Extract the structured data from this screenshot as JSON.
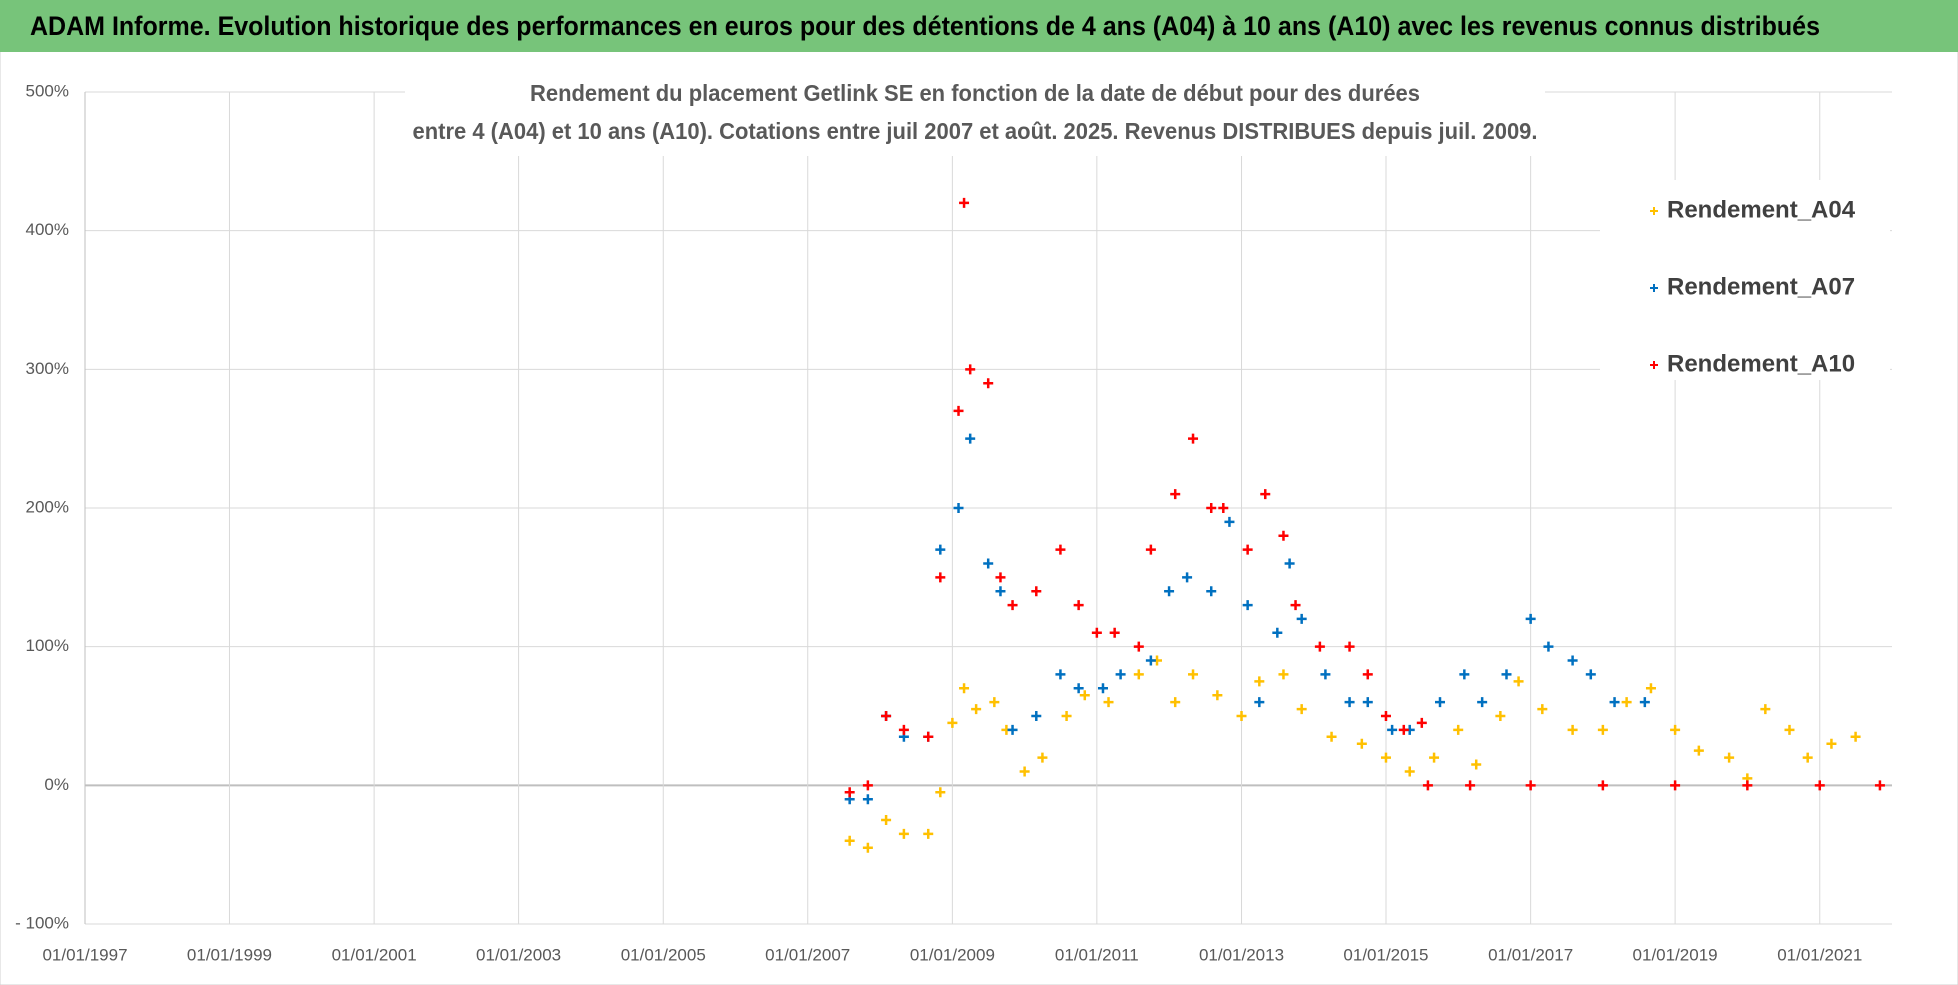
{
  "header": {
    "title": "ADAM Informe. Evolution historique des performances en euros pour des détentions de 4 ans (A04) à 10 ans (A10) avec les revenus connus distribués"
  },
  "chart_data": {
    "type": "scatter",
    "title": [
      "Rendement du placement Getlink SE en fonction de la date de début pour des durées",
      "entre 4 (A04) et 10 ans (A10).  Cotations entre juil 2007 et août. 2025.  Revenus DISTRIBUES depuis juil. 2009."
    ],
    "xlim": [
      "01/01/1997",
      "01/01/2022"
    ],
    "xticks": [
      "01/01/1997",
      "01/01/1999",
      "01/01/2001",
      "01/01/2003",
      "01/01/2005",
      "01/01/2007",
      "01/01/2009",
      "01/01/2011",
      "01/01/2013",
      "01/01/2015",
      "01/01/2017",
      "01/01/2019",
      "01/01/2021"
    ],
    "ylim": [
      -100,
      500
    ],
    "yticks": [
      {
        "value": -100,
        "label": "- 100%"
      },
      {
        "value": 0,
        "label": "0%"
      },
      {
        "value": 100,
        "label": "100%"
      },
      {
        "value": 200,
        "label": "200%"
      },
      {
        "value": 300,
        "label": "300%"
      },
      {
        "value": 400,
        "label": "400%"
      },
      {
        "value": 500,
        "label": "500%"
      }
    ],
    "grid": true,
    "legend": "top-right",
    "series": [
      {
        "name": "Rendement_A04",
        "color": "#ffc000",
        "x": [
          "01/08/2007",
          "01/11/2007",
          "01/02/2008",
          "01/05/2008",
          "01/09/2008",
          "01/11/2008",
          "01/01/2009",
          "01/03/2009",
          "01/05/2009",
          "01/08/2009",
          "01/10/2009",
          "01/01/2010",
          "01/04/2010",
          "01/08/2010",
          "01/11/2010",
          "01/03/2011",
          "01/08/2011",
          "01/11/2011",
          "01/02/2012",
          "01/05/2012",
          "01/09/2012",
          "01/01/2013",
          "01/04/2013",
          "01/08/2013",
          "01/11/2013",
          "01/04/2014",
          "01/09/2014",
          "01/01/2015",
          "01/05/2015",
          "01/09/2015",
          "01/01/2016",
          "01/04/2016",
          "01/08/2016",
          "01/11/2016",
          "01/03/2017",
          "01/08/2017",
          "01/01/2018",
          "01/05/2018",
          "01/09/2018",
          "01/01/2019",
          "01/05/2019",
          "01/10/2019",
          "01/01/2020",
          "01/04/2020",
          "01/08/2020",
          "01/11/2020",
          "01/03/2021",
          "01/07/2021"
        ],
        "values": [
          -40,
          -45,
          -25,
          -35,
          -35,
          -5,
          45,
          70,
          55,
          60,
          40,
          10,
          20,
          50,
          65,
          60,
          80,
          90,
          60,
          80,
          65,
          50,
          75,
          80,
          55,
          35,
          30,
          20,
          10,
          20,
          40,
          15,
          50,
          75,
          55,
          40,
          40,
          60,
          70,
          40,
          25,
          20,
          5,
          55,
          40,
          20,
          30,
          35
        ]
      },
      {
        "name": "Rendement_A07",
        "color": "#0070c0",
        "x": [
          "01/08/2007",
          "01/11/2007",
          "01/02/2008",
          "01/05/2008",
          "01/09/2008",
          "01/11/2008",
          "01/02/2009",
          "01/04/2009",
          "01/07/2009",
          "01/09/2009",
          "01/11/2009",
          "01/03/2010",
          "01/07/2010",
          "01/10/2010",
          "01/02/2011",
          "01/05/2011",
          "01/10/2011",
          "01/01/2012",
          "01/04/2012",
          "01/08/2012",
          "01/11/2012",
          "01/02/2013",
          "01/04/2013",
          "01/07/2013",
          "01/09/2013",
          "01/11/2013",
          "01/03/2014",
          "01/07/2014",
          "01/10/2014",
          "01/02/2015",
          "01/05/2015",
          "01/10/2015",
          "01/02/2016",
          "01/05/2016",
          "01/09/2016",
          "01/01/2017",
          "01/04/2017",
          "01/08/2017",
          "01/11/2017",
          "01/03/2018",
          "01/08/2018"
        ],
        "values": [
          -10,
          -10,
          50,
          35,
          35,
          170,
          200,
          250,
          160,
          140,
          40,
          50,
          80,
          70,
          70,
          80,
          90,
          140,
          150,
          140,
          190,
          130,
          60,
          110,
          160,
          120,
          80,
          60,
          60,
          40,
          40,
          60,
          80,
          60,
          80,
          120,
          100,
          90,
          80,
          60,
          60
        ]
      },
      {
        "name": "Rendement_A10",
        "color": "#ff0000",
        "x": [
          "01/08/2007",
          "01/11/2007",
          "01/02/2008",
          "01/05/2008",
          "01/09/2008",
          "01/11/2008",
          "01/02/2009",
          "01/03/2009",
          "01/04/2009",
          "01/07/2009",
          "01/09/2009",
          "01/11/2009",
          "01/03/2010",
          "01/07/2010",
          "01/10/2010",
          "01/01/2011",
          "01/04/2011",
          "01/08/2011",
          "01/10/2011",
          "01/02/2012",
          "01/05/2012",
          "01/08/2012",
          "01/10/2012",
          "01/02/2013",
          "01/05/2013",
          "01/08/2013",
          "01/10/2013",
          "01/02/2014",
          "01/07/2014",
          "01/10/2014",
          "01/01/2015",
          "01/04/2015",
          "01/07/2015",
          "01/08/2015",
          "01/03/2016",
          "01/01/2017",
          "01/01/2018",
          "01/01/2019",
          "01/01/2020",
          "01/01/2021",
          "01/11/2021"
        ],
        "values": [
          -5,
          0,
          50,
          40,
          35,
          150,
          270,
          420,
          300,
          290,
          150,
          130,
          140,
          170,
          130,
          110,
          110,
          100,
          170,
          210,
          250,
          200,
          200,
          170,
          210,
          180,
          130,
          100,
          100,
          80,
          50,
          40,
          45,
          0,
          0,
          0,
          0,
          0,
          0,
          0,
          0
        ]
      }
    ]
  }
}
